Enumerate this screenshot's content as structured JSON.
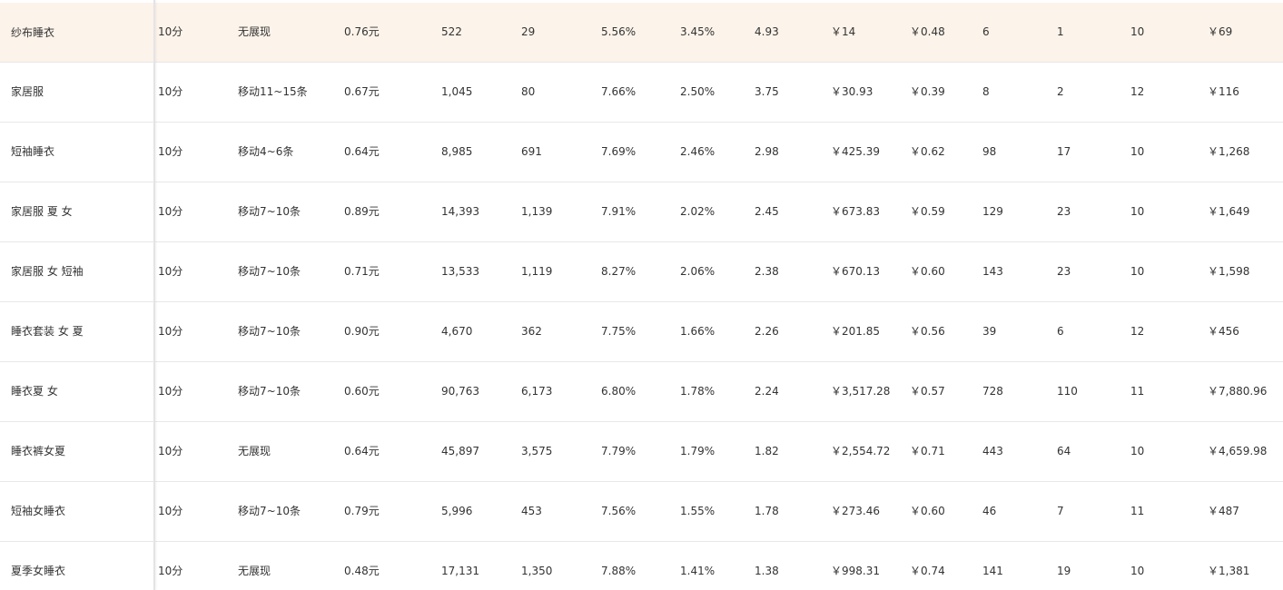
{
  "table": {
    "rows": [
      [
        "纱布睡衣",
        "10分",
        "无展现",
        "0.76元",
        "522",
        "29",
        "5.56%",
        "3.45%",
        "4.93",
        "￥14",
        "￥0.48",
        "6",
        "1",
        "10",
        "￥69"
      ],
      [
        "家居服",
        "10分",
        "移动11~15条",
        "0.67元",
        "1,045",
        "80",
        "7.66%",
        "2.50%",
        "3.75",
        "￥30.93",
        "￥0.39",
        "8",
        "2",
        "12",
        "￥116"
      ],
      [
        "短袖睡衣",
        "10分",
        "移动4~6条",
        "0.64元",
        "8,985",
        "691",
        "7.69%",
        "2.46%",
        "2.98",
        "￥425.39",
        "￥0.62",
        "98",
        "17",
        "10",
        "￥1,268"
      ],
      [
        "家居服 夏 女",
        "10分",
        "移动7~10条",
        "0.89元",
        "14,393",
        "1,139",
        "7.91%",
        "2.02%",
        "2.45",
        "￥673.83",
        "￥0.59",
        "129",
        "23",
        "10",
        "￥1,649"
      ],
      [
        "家居服 女 短袖",
        "10分",
        "移动7~10条",
        "0.71元",
        "13,533",
        "1,119",
        "8.27%",
        "2.06%",
        "2.38",
        "￥670.13",
        "￥0.60",
        "143",
        "23",
        "10",
        "￥1,598"
      ],
      [
        "睡衣套装 女 夏",
        "10分",
        "移动7~10条",
        "0.90元",
        "4,670",
        "362",
        "7.75%",
        "1.66%",
        "2.26",
        "￥201.85",
        "￥0.56",
        "39",
        "6",
        "12",
        "￥456"
      ],
      [
        "睡衣夏 女",
        "10分",
        "移动7~10条",
        "0.60元",
        "90,763",
        "6,173",
        "6.80%",
        "1.78%",
        "2.24",
        "￥3,517.28",
        "￥0.57",
        "728",
        "110",
        "11",
        "￥7,880.96"
      ],
      [
        "睡衣裤女夏",
        "10分",
        "无展现",
        "0.64元",
        "45,897",
        "3,575",
        "7.79%",
        "1.79%",
        "1.82",
        "￥2,554.72",
        "￥0.71",
        "443",
        "64",
        "10",
        "￥4,659.98"
      ],
      [
        "短袖女睡衣",
        "10分",
        "移动7~10条",
        "0.79元",
        "5,996",
        "453",
        "7.56%",
        "1.55%",
        "1.78",
        "￥273.46",
        "￥0.60",
        "46",
        "7",
        "11",
        "￥487"
      ],
      [
        "夏季女睡衣",
        "10分",
        "无展现",
        "0.48元",
        "17,131",
        "1,350",
        "7.88%",
        "1.41%",
        "1.38",
        "￥998.31",
        "￥0.74",
        "141",
        "19",
        "10",
        "￥1,381"
      ]
    ]
  }
}
